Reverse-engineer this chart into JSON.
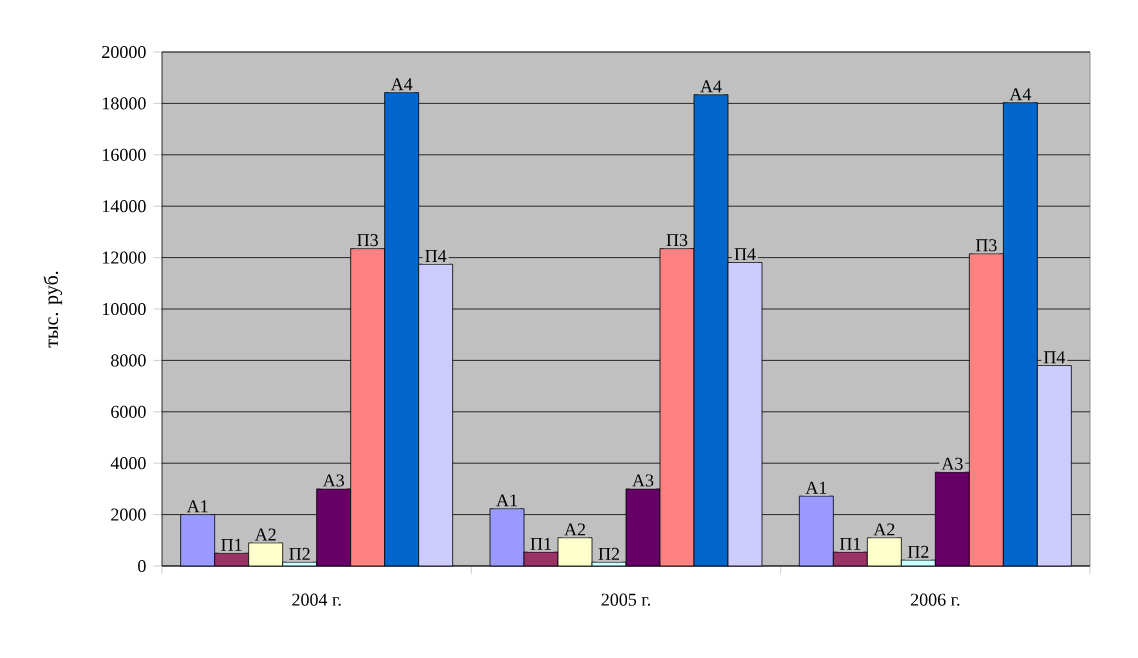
{
  "chart_data": {
    "type": "bar",
    "ylabel": "тыс. руб.",
    "categories": [
      "2004 г.",
      "2005 г.",
      "2006 г."
    ],
    "series": [
      {
        "name": "А1",
        "color": "#9999ff",
        "values": [
          2000,
          2230,
          2720
        ]
      },
      {
        "name": "П1",
        "color": "#993366",
        "values": [
          500,
          540,
          540
        ]
      },
      {
        "name": "А2",
        "color": "#ffffcc",
        "values": [
          900,
          1100,
          1100
        ]
      },
      {
        "name": "П2",
        "color": "#ccffff",
        "values": [
          150,
          150,
          230
        ]
      },
      {
        "name": "А3",
        "color": "#660066",
        "values": [
          3000,
          3000,
          3650
        ]
      },
      {
        "name": "П3",
        "color": "#ff8080",
        "values": [
          12350,
          12350,
          12150
        ]
      },
      {
        "name": "А4",
        "color": "#0066cc",
        "values": [
          18420,
          18340,
          18030
        ]
      },
      {
        "name": "П4",
        "color": "#ccccff",
        "values": [
          11740,
          11810,
          7800
        ]
      }
    ],
    "ylim": [
      0,
      20000
    ],
    "yticks": [
      0,
      2000,
      4000,
      6000,
      8000,
      10000,
      12000,
      14000,
      16000,
      18000,
      20000
    ],
    "grid": "y",
    "legend": false
  }
}
